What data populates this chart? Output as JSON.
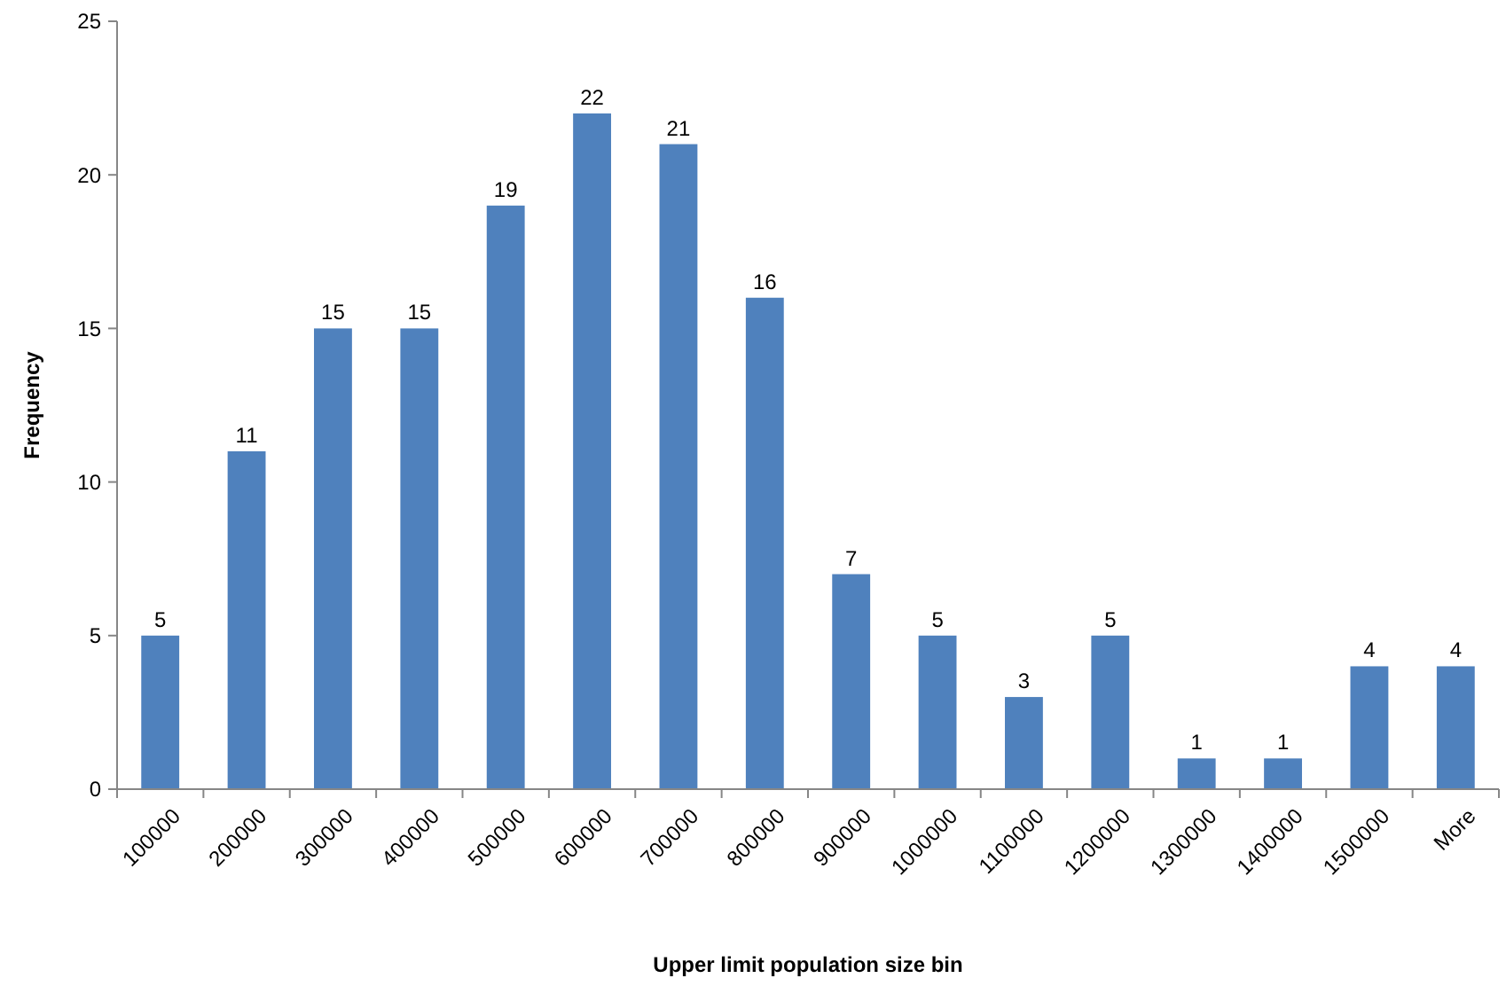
{
  "chart_data": {
    "type": "bar",
    "xlabel": "Upper limit population size bin",
    "ylabel": "Frequency",
    "categories": [
      "100000",
      "200000",
      "300000",
      "400000",
      "500000",
      "600000",
      "700000",
      "800000",
      "900000",
      "1000000",
      "1100000",
      "1200000",
      "1300000",
      "1400000",
      "1500000",
      "More"
    ],
    "values": [
      5,
      11,
      15,
      15,
      19,
      22,
      21,
      16,
      7,
      5,
      3,
      5,
      1,
      1,
      4,
      4
    ],
    "color": "#4f81bd",
    "data_labels": true,
    "ylim": [
      0,
      25
    ],
    "yticks": [
      0,
      5,
      10,
      15,
      20,
      25
    ],
    "grid": false
  }
}
